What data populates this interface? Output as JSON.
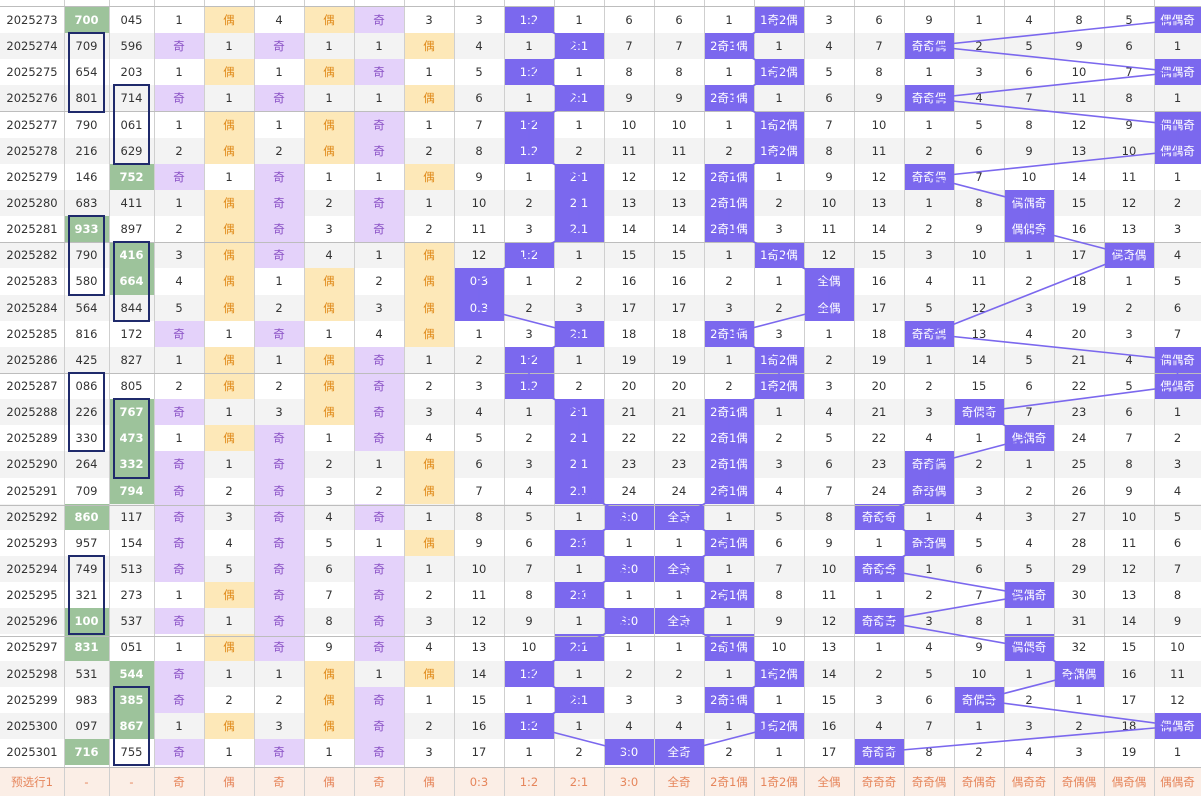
{
  "colors": {
    "odd_bg": "#e4d2fa",
    "odd_text": "#8a52c6",
    "even_bg": "#fde8b8",
    "even_text": "#e08a1a",
    "hit_bg": "#7b68ee",
    "hot_bg": "#9dc39b",
    "footer_bg": "#fbeee6",
    "footer_text": "#e6865c",
    "box_border": "#1f2a6b",
    "link_line": "#7b68ee"
  },
  "rows": [
    [
      "2025273",
      "700",
      "045",
      "1",
      "偶",
      "4",
      "偶",
      "奇",
      "3",
      "3",
      "1:2",
      "1",
      "6",
      "6",
      "1",
      "1奇2偶",
      "3",
      "6",
      "9",
      "1",
      "4",
      "8",
      "5",
      "偶偶奇"
    ],
    [
      "2025274",
      "709",
      "596",
      "奇",
      "1",
      "奇",
      "1",
      "1",
      "偶",
      "4",
      "1",
      "2:1",
      "7",
      "7",
      "2奇1偶",
      "1",
      "4",
      "7",
      "奇奇偶",
      "2",
      "5",
      "9",
      "6",
      "1"
    ],
    [
      "2025275",
      "654",
      "203",
      "1",
      "偶",
      "1",
      "偶",
      "奇",
      "1",
      "5",
      "1:2",
      "1",
      "8",
      "8",
      "1",
      "1奇2偶",
      "5",
      "8",
      "1",
      "3",
      "6",
      "10",
      "7",
      "偶偶奇"
    ],
    [
      "2025276",
      "801",
      "714",
      "奇",
      "1",
      "奇",
      "1",
      "1",
      "偶",
      "6",
      "1",
      "2:1",
      "9",
      "9",
      "2奇1偶",
      "1",
      "6",
      "9",
      "奇奇偶",
      "4",
      "7",
      "11",
      "8",
      "1"
    ],
    [
      "2025277",
      "790",
      "061",
      "1",
      "偶",
      "1",
      "偶",
      "奇",
      "1",
      "7",
      "1:2",
      "1",
      "10",
      "10",
      "1",
      "1奇2偶",
      "7",
      "10",
      "1",
      "5",
      "8",
      "12",
      "9",
      "偶偶奇"
    ],
    [
      "2025278",
      "216",
      "629",
      "2",
      "偶",
      "2",
      "偶",
      "奇",
      "2",
      "8",
      "1:2",
      "2",
      "11",
      "11",
      "2",
      "1奇2偶",
      "8",
      "11",
      "2",
      "6",
      "9",
      "13",
      "10",
      "偶偶奇"
    ],
    [
      "2025279",
      "146",
      "752",
      "奇",
      "1",
      "奇",
      "1",
      "1",
      "偶",
      "9",
      "1",
      "2:1",
      "12",
      "12",
      "2奇1偶",
      "1",
      "9",
      "12",
      "奇奇偶",
      "7",
      "10",
      "14",
      "11",
      "1"
    ],
    [
      "2025280",
      "683",
      "411",
      "1",
      "偶",
      "奇",
      "2",
      "奇",
      "1",
      "10",
      "2",
      "2:1",
      "13",
      "13",
      "2奇1偶",
      "2",
      "10",
      "13",
      "1",
      "8",
      "偶偶奇",
      "15",
      "12",
      "2"
    ],
    [
      "2025281",
      "933",
      "897",
      "2",
      "偶",
      "奇",
      "3",
      "奇",
      "2",
      "11",
      "3",
      "2:1",
      "14",
      "14",
      "2奇1偶",
      "3",
      "11",
      "14",
      "2",
      "9",
      "偶偶奇",
      "16",
      "13",
      "3"
    ],
    [
      "2025282",
      "790",
      "416",
      "3",
      "偶",
      "奇",
      "4",
      "1",
      "偶",
      "12",
      "1:2",
      "1",
      "15",
      "15",
      "1",
      "1奇2偶",
      "12",
      "15",
      "3",
      "10",
      "1",
      "17",
      "偶奇偶",
      "4"
    ],
    [
      "2025283",
      "580",
      "664",
      "4",
      "偶",
      "1",
      "偶",
      "2",
      "偶",
      "0:3",
      "1",
      "2",
      "16",
      "16",
      "2",
      "1",
      "全偶",
      "16",
      "4",
      "11",
      "2",
      "18",
      "1",
      "5"
    ],
    [
      "2025284",
      "564",
      "844",
      "5",
      "偶",
      "2",
      "偶",
      "3",
      "偶",
      "0:3",
      "2",
      "3",
      "17",
      "17",
      "3",
      "2",
      "全偶",
      "17",
      "5",
      "12",
      "3",
      "19",
      "2",
      "6"
    ],
    [
      "2025285",
      "816",
      "172",
      "奇",
      "1",
      "奇",
      "1",
      "4",
      "偶",
      "1",
      "3",
      "2:1",
      "18",
      "18",
      "2奇1偶",
      "3",
      "1",
      "18",
      "奇奇偶",
      "13",
      "4",
      "20",
      "3",
      "7"
    ],
    [
      "2025286",
      "425",
      "827",
      "1",
      "偶",
      "1",
      "偶",
      "奇",
      "1",
      "2",
      "1:2",
      "1",
      "19",
      "19",
      "1",
      "1奇2偶",
      "2",
      "19",
      "1",
      "14",
      "5",
      "21",
      "4",
      "偶偶奇"
    ],
    [
      "2025287",
      "086",
      "805",
      "2",
      "偶",
      "2",
      "偶",
      "奇",
      "2",
      "3",
      "1:2",
      "2",
      "20",
      "20",
      "2",
      "1奇2偶",
      "3",
      "20",
      "2",
      "15",
      "6",
      "22",
      "5",
      "偶偶奇"
    ],
    [
      "2025288",
      "226",
      "767",
      "奇",
      "1",
      "3",
      "偶",
      "奇",
      "3",
      "4",
      "1",
      "2:1",
      "21",
      "21",
      "2奇1偶",
      "1",
      "4",
      "21",
      "3",
      "奇偶奇",
      "7",
      "23",
      "6",
      "1"
    ],
    [
      "2025289",
      "330",
      "473",
      "1",
      "偶",
      "奇",
      "1",
      "奇",
      "4",
      "5",
      "2",
      "2:1",
      "22",
      "22",
      "2奇1偶",
      "2",
      "5",
      "22",
      "4",
      "1",
      "偶偶奇",
      "24",
      "7",
      "2"
    ],
    [
      "2025290",
      "264",
      "332",
      "奇",
      "1",
      "奇",
      "2",
      "1",
      "偶",
      "6",
      "3",
      "2:1",
      "23",
      "23",
      "2奇1偶",
      "3",
      "6",
      "23",
      "奇奇偶",
      "2",
      "1",
      "25",
      "8",
      "3"
    ],
    [
      "2025291",
      "709",
      "794",
      "奇",
      "2",
      "奇",
      "3",
      "2",
      "偶",
      "7",
      "4",
      "2:1",
      "24",
      "24",
      "2奇1偶",
      "4",
      "7",
      "24",
      "奇奇偶",
      "3",
      "2",
      "26",
      "9",
      "4"
    ],
    [
      "2025292",
      "860",
      "117",
      "奇",
      "3",
      "奇",
      "4",
      "奇",
      "1",
      "8",
      "5",
      "1",
      "3:0",
      "全奇",
      "1",
      "5",
      "8",
      "奇奇奇",
      "1",
      "4",
      "3",
      "27",
      "10",
      "5"
    ],
    [
      "2025293",
      "957",
      "154",
      "奇",
      "4",
      "奇",
      "5",
      "1",
      "偶",
      "9",
      "6",
      "2:1",
      "1",
      "1",
      "2奇1偶",
      "6",
      "9",
      "1",
      "奇奇偶",
      "5",
      "4",
      "28",
      "11",
      "6"
    ],
    [
      "2025294",
      "749",
      "513",
      "奇",
      "5",
      "奇",
      "6",
      "奇",
      "1",
      "10",
      "7",
      "1",
      "3:0",
      "全奇",
      "1",
      "7",
      "10",
      "奇奇奇",
      "1",
      "6",
      "5",
      "29",
      "12",
      "7"
    ],
    [
      "2025295",
      "321",
      "273",
      "1",
      "偶",
      "奇",
      "7",
      "奇",
      "2",
      "11",
      "8",
      "2:1",
      "1",
      "1",
      "2奇1偶",
      "8",
      "11",
      "1",
      "2",
      "7",
      "偶偶奇",
      "30",
      "13",
      "8"
    ],
    [
      "2025296",
      "100",
      "537",
      "奇",
      "1",
      "奇",
      "8",
      "奇",
      "3",
      "12",
      "9",
      "1",
      "3:0",
      "全奇",
      "1",
      "9",
      "12",
      "奇奇奇",
      "3",
      "8",
      "1",
      "31",
      "14",
      "9"
    ],
    [
      "2025297",
      "831",
      "051",
      "1",
      "偶",
      "奇",
      "9",
      "奇",
      "4",
      "13",
      "10",
      "2:1",
      "1",
      "1",
      "2奇1偶",
      "10",
      "13",
      "1",
      "4",
      "9",
      "偶偶奇",
      "32",
      "15",
      "10"
    ],
    [
      "2025298",
      "531",
      "544",
      "奇",
      "1",
      "1",
      "偶",
      "1",
      "偶",
      "14",
      "1:2",
      "1",
      "2",
      "2",
      "1",
      "1奇2偶",
      "14",
      "2",
      "5",
      "10",
      "1",
      "奇偶偶",
      "16",
      "11"
    ],
    [
      "2025299",
      "983",
      "385",
      "奇",
      "2",
      "2",
      "偶",
      "奇",
      "1",
      "15",
      "1",
      "2:1",
      "3",
      "3",
      "2奇1偶",
      "1",
      "15",
      "3",
      "6",
      "奇偶奇",
      "2",
      "1",
      "17",
      "12"
    ],
    [
      "2025300",
      "097",
      "867",
      "1",
      "偶",
      "3",
      "偶",
      "奇",
      "2",
      "16",
      "1:2",
      "1",
      "4",
      "4",
      "1",
      "1奇2偶",
      "16",
      "4",
      "7",
      "1",
      "3",
      "2",
      "18",
      "偶偶奇"
    ],
    [
      "2025301",
      "716",
      "755",
      "奇",
      "1",
      "奇",
      "1",
      "奇",
      "3",
      "17",
      "1",
      "2",
      "3:0",
      "全奇",
      "2",
      "1",
      "17",
      "奇奇奇",
      "8",
      "2",
      "4",
      "3",
      "19",
      "1"
    ]
  ],
  "footer": [
    "预选行1",
    "-",
    "-",
    "奇",
    "偶",
    "奇",
    "偶",
    "奇",
    "偶",
    "0:3",
    "1:2",
    "2:1",
    "3:0",
    "全奇",
    "2奇1偶",
    "1奇2偶",
    "全偶",
    "奇奇奇",
    "奇奇偶",
    "奇偶奇",
    "偶奇奇",
    "奇偶偶",
    "偶奇偶",
    "偶偶奇"
  ]
}
